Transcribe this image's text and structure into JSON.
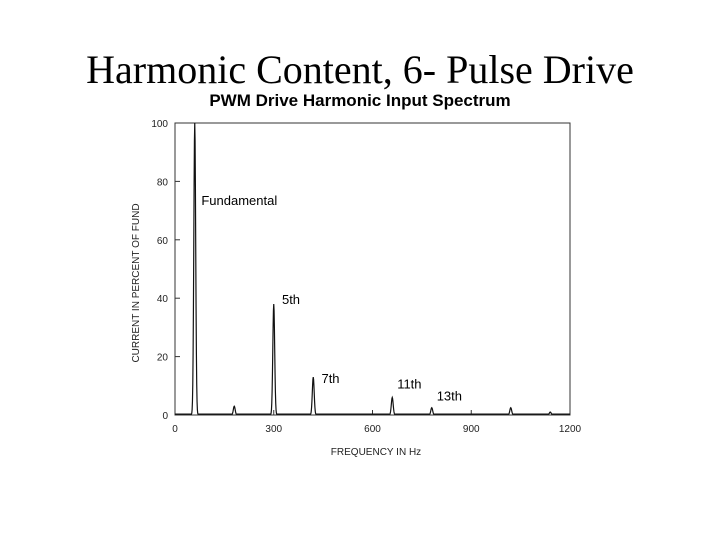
{
  "slide": {
    "title": "Harmonic Content, 6- Pulse Drive"
  },
  "chart_data": {
    "type": "line",
    "title": "PWM Drive Harmonic Input Spectrum",
    "xlabel": "FREQUENCY IN Hz",
    "ylabel": "CURRENT IN PERCENT OF FUND",
    "xlim": [
      0,
      1200
    ],
    "ylim": [
      0,
      100
    ],
    "xticks": [
      0,
      300,
      600,
      900,
      1200
    ],
    "yticks": [
      0,
      20,
      40,
      60,
      80,
      100
    ],
    "grid": false,
    "series": [
      {
        "peaks": [
          {
            "x": 60,
            "y": 100
          },
          {
            "x": 180,
            "y": 3
          },
          {
            "x": 300,
            "y": 38
          },
          {
            "x": 420,
            "y": 13
          },
          {
            "x": 660,
            "y": 6
          },
          {
            "x": 780,
            "y": 2.5
          },
          {
            "x": 1020,
            "y": 2.5
          },
          {
            "x": 1140,
            "y": 1
          }
        ]
      }
    ],
    "annotations": [
      {
        "text": "Fundamental",
        "x": 80,
        "y": 72
      },
      {
        "text": "5th",
        "x": 325,
        "y": 38
      },
      {
        "text": "7th",
        "x": 445,
        "y": 11
      },
      {
        "text": "11th",
        "x": 675,
        "y": 9
      },
      {
        "text": "13th",
        "x": 795,
        "y": 5
      }
    ]
  }
}
